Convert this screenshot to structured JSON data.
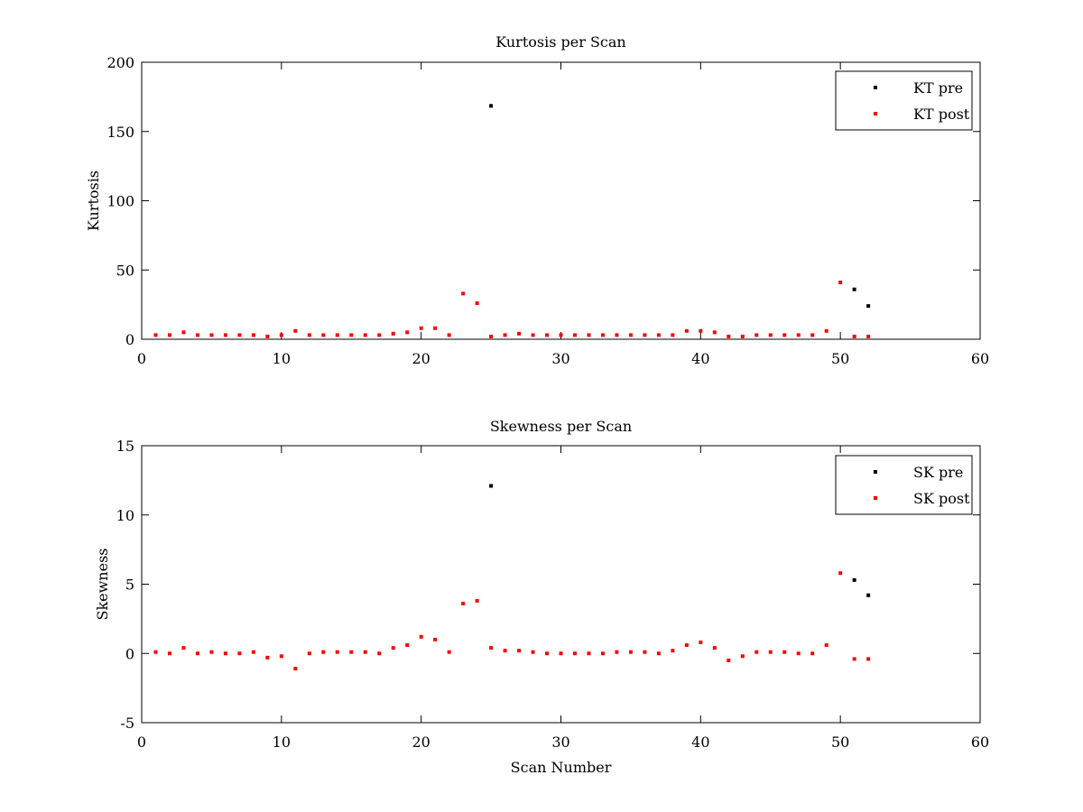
{
  "chart_data": [
    {
      "type": "scatter",
      "title": "Kurtosis per Scan",
      "xlabel": "",
      "ylabel": "Kurtosis",
      "xlim": [
        0,
        60
      ],
      "ylim": [
        0,
        200
      ],
      "xticks": [
        "0",
        "10",
        "20",
        "30",
        "40",
        "50",
        "60"
      ],
      "yticks": [
        "0",
        "50",
        "100",
        "150",
        "200"
      ],
      "grid": false,
      "legend_position": "top-right",
      "series": [
        {
          "name": "KT pre",
          "color": "#000000",
          "x": [
            25,
            51,
            52
          ],
          "y": [
            168.5,
            36,
            24
          ]
        },
        {
          "name": "KT post",
          "color": "#ff0000",
          "x": [
            1,
            2,
            3,
            4,
            5,
            6,
            7,
            8,
            9,
            10,
            11,
            12,
            13,
            14,
            15,
            16,
            17,
            18,
            19,
            20,
            21,
            22,
            23,
            24,
            25,
            26,
            27,
            28,
            29,
            30,
            31,
            32,
            33,
            34,
            35,
            36,
            37,
            38,
            39,
            40,
            41,
            42,
            43,
            44,
            45,
            46,
            47,
            48,
            49,
            50,
            51,
            52
          ],
          "y": [
            3,
            3,
            5,
            3,
            3,
            3,
            3,
            3,
            2,
            3,
            6,
            3,
            3,
            3,
            3,
            3,
            3,
            4,
            5,
            8,
            8,
            3,
            33,
            26,
            2,
            3,
            4,
            3,
            3,
            3,
            3,
            3,
            3,
            3,
            3,
            3,
            3,
            3,
            6,
            6,
            5,
            2,
            2,
            3,
            3,
            3,
            3,
            3,
            6,
            41,
            2,
            2
          ]
        }
      ]
    },
    {
      "type": "scatter",
      "title": "Skewness per Scan",
      "xlabel": "Scan Number",
      "ylabel": "Skewness",
      "xlim": [
        0,
        60
      ],
      "ylim": [
        -5,
        15
      ],
      "xticks": [
        "0",
        "10",
        "20",
        "30",
        "40",
        "50",
        "60"
      ],
      "yticks": [
        "-5",
        "0",
        "5",
        "10",
        "15"
      ],
      "grid": false,
      "legend_position": "top-right",
      "series": [
        {
          "name": "SK pre",
          "color": "#000000",
          "x": [
            25,
            51,
            52
          ],
          "y": [
            12.1,
            5.3,
            4.2
          ]
        },
        {
          "name": "SK post",
          "color": "#ff0000",
          "x": [
            1,
            2,
            3,
            4,
            5,
            6,
            7,
            8,
            9,
            10,
            11,
            12,
            13,
            14,
            15,
            16,
            17,
            18,
            19,
            20,
            21,
            22,
            23,
            24,
            25,
            26,
            27,
            28,
            29,
            30,
            31,
            32,
            33,
            34,
            35,
            36,
            37,
            38,
            39,
            40,
            41,
            42,
            43,
            44,
            45,
            46,
            47,
            48,
            49,
            50,
            51,
            52
          ],
          "y": [
            0.1,
            0,
            0.4,
            0,
            0.1,
            0,
            0,
            0.1,
            -0.3,
            -0.2,
            -1.1,
            0,
            0.1,
            0.1,
            0.1,
            0.1,
            0,
            0.4,
            0.6,
            1.2,
            1.0,
            0.1,
            3.6,
            3.8,
            0.4,
            0.2,
            0.2,
            0.1,
            0,
            0,
            0,
            0,
            0,
            0.1,
            0.1,
            0.1,
            0,
            0.2,
            0.6,
            0.8,
            0.4,
            -0.5,
            -0.2,
            0.1,
            0.1,
            0.1,
            0,
            0,
            0.6,
            5.8,
            -0.4,
            -0.4
          ]
        }
      ]
    }
  ]
}
